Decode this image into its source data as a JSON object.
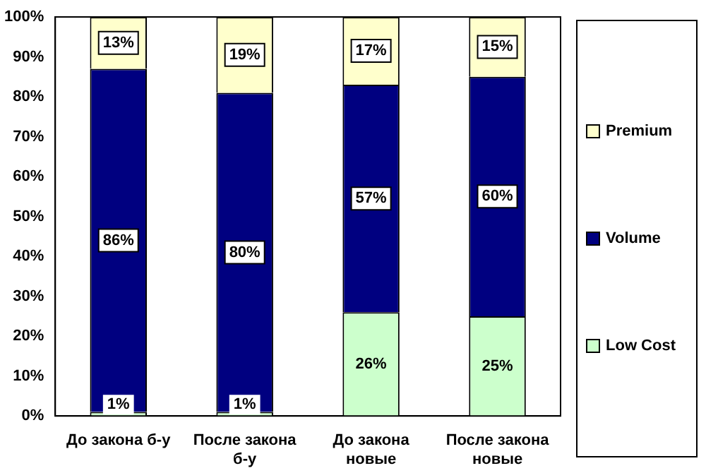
{
  "chart_data": {
    "type": "bar",
    "stacked": true,
    "categories": [
      "До закона б-у",
      "После закона б-у",
      "До закона новые",
      "После закона новые"
    ],
    "series": [
      {
        "name": "Low Cost",
        "color": "#ccffcc",
        "values": [
          1,
          1,
          26,
          25
        ],
        "value_labels": [
          "1%",
          "1%",
          "26%",
          "25%"
        ]
      },
      {
        "name": "Volume",
        "color": "#000080",
        "values": [
          86,
          80,
          57,
          60
        ],
        "value_labels": [
          "86%",
          "80%",
          "57%",
          "60%"
        ]
      },
      {
        "name": "Premium",
        "color": "#ffffcc",
        "values": [
          13,
          19,
          17,
          15
        ],
        "value_labels": [
          "13%",
          "19%",
          "17%",
          "15%"
        ]
      }
    ],
    "ylim": [
      0,
      100
    ],
    "yticks": [
      {
        "value": 0,
        "label": "0%"
      },
      {
        "value": 10,
        "label": "10%"
      },
      {
        "value": 20,
        "label": "20%"
      },
      {
        "value": 30,
        "label": "30%"
      },
      {
        "value": 40,
        "label": "40%"
      },
      {
        "value": 50,
        "label": "50%"
      },
      {
        "value": 60,
        "label": "60%"
      },
      {
        "value": 70,
        "label": "70%"
      },
      {
        "value": 80,
        "label": "80%"
      },
      {
        "value": 90,
        "label": "90%"
      },
      {
        "value": 100,
        "label": "100%"
      }
    ],
    "grid": false,
    "legend": "right"
  }
}
